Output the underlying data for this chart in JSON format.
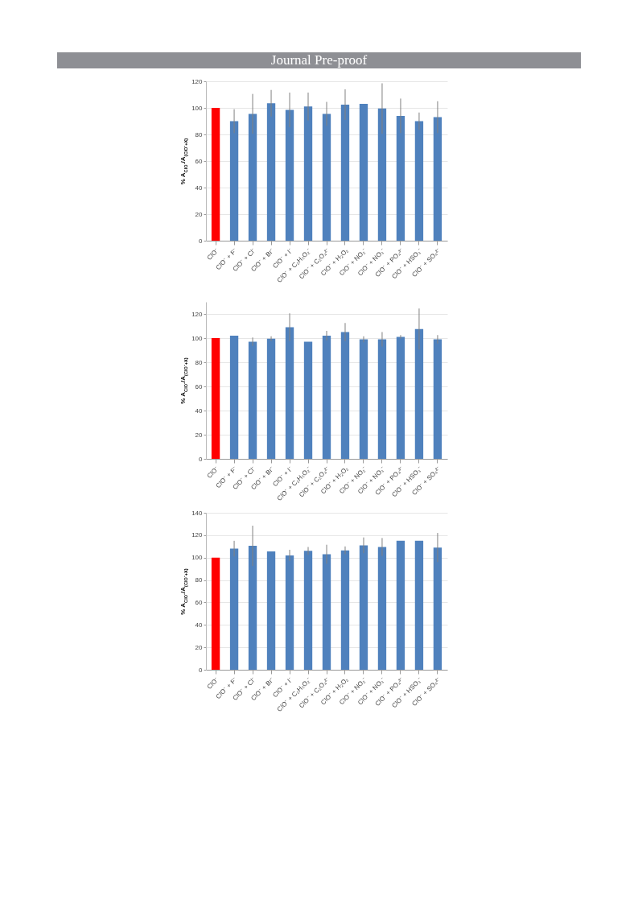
{
  "chart_data": [
    {
      "type": "bar",
      "annotations": [
        "Journal Pre-proof"
      ],
      "ylabel": "% A$_{ClO⁻}$/A$_{(ClO⁻+X)}$",
      "categories": [
        "ClO⁻",
        "ClO⁻ + F⁻",
        "ClO⁻ + Cl⁻",
        "ClO⁻ + Br⁻",
        "ClO⁻ + I⁻",
        "ClO⁻ + C₂H₃O₂⁻",
        "ClO⁻ + C₂O₄²⁻",
        "ClO⁻ + H₂O₂",
        "ClO⁻ + NO₂⁻",
        "ClO⁻ + NO₃⁻",
        "ClO⁻ + PO₄³⁻",
        "ClO⁻ + HSO₃⁻",
        "ClO⁻ + SO₄²⁻"
      ],
      "values": [
        100,
        90,
        95.5,
        103.5,
        98.5,
        101,
        95.5,
        102.5,
        103,
        99.5,
        94,
        90,
        93
      ],
      "errors": [
        null,
        9,
        15,
        10,
        13,
        10.5,
        9,
        11.5,
        null,
        19,
        13,
        6.5,
        12
      ],
      "colors": [
        "#ff0000",
        "#4f81bd",
        "#4f81bd",
        "#4f81bd",
        "#4f81bd",
        "#4f81bd",
        "#4f81bd",
        "#4f81bd",
        "#4f81bd",
        "#4f81bd",
        "#4f81bd",
        "#4f81bd",
        "#4f81bd"
      ],
      "ylim": [
        0,
        120
      ],
      "yticks": [
        0,
        20,
        40,
        60,
        80,
        100,
        120
      ],
      "grid": "y"
    },
    {
      "type": "bar",
      "ylabel": "% A$_{ClO⁻}$/A$_{(ClO⁻+X)}$",
      "categories": [
        "ClO⁻",
        "ClO⁻ + F⁻",
        "ClO⁻ + Cl⁻",
        "ClO⁻ + Br⁻",
        "ClO⁻ + I⁻",
        "ClO⁻ + C₂H₃O₂⁻",
        "ClO⁻ + C₂O₄²⁻",
        "ClO⁻ + H₂O₂",
        "ClO⁻ + NO₂⁻",
        "ClO⁻ + NO₃⁻",
        "ClO⁻ + PO₄³⁻",
        "ClO⁻ + HSO₃⁻",
        "ClO⁻ + SO₄²⁻"
      ],
      "values": [
        100,
        102,
        97,
        99.5,
        109,
        97,
        102,
        105,
        99,
        99,
        101,
        107.5,
        99
      ],
      "errors": [
        null,
        null,
        3.5,
        2,
        11.5,
        null,
        4,
        7.5,
        2.5,
        6,
        1.5,
        17,
        3.5
      ],
      "colors": [
        "#ff0000",
        "#4f81bd",
        "#4f81bd",
        "#4f81bd",
        "#4f81bd",
        "#4f81bd",
        "#4f81bd",
        "#4f81bd",
        "#4f81bd",
        "#4f81bd",
        "#4f81bd",
        "#4f81bd",
        "#4f81bd"
      ],
      "ylim": [
        0,
        130
      ],
      "yticks": [
        0,
        20,
        40,
        60,
        80,
        100,
        120
      ],
      "grid": "y"
    },
    {
      "type": "bar",
      "ylabel": "% A$_{ClO⁻}$/A$_{(ClO⁻+X)}$",
      "categories": [
        "ClO⁻",
        "ClO⁻ + F⁻",
        "ClO⁻ + Cl⁻",
        "ClO⁻ + Br⁻",
        "ClO⁻ + I⁻",
        "ClO⁻ + C₂H₃O₂⁻",
        "ClO⁻ + C₂O₄²⁻",
        "ClO⁻ + H₂O₂",
        "ClO⁻ + NO₂⁻",
        "ClO⁻ + NO₃⁻",
        "ClO⁻ + PO₄³⁻",
        "ClO⁻ + HSO₃⁻",
        "ClO⁻ + SO₄²⁻"
      ],
      "values": [
        100,
        108,
        110.5,
        105.5,
        102,
        106,
        103,
        106.5,
        111,
        109.5,
        115,
        115,
        109
      ],
      "errors": [
        null,
        7,
        18,
        null,
        5,
        3.5,
        8.5,
        3.5,
        7,
        8,
        null,
        null,
        13
      ],
      "colors": [
        "#ff0000",
        "#4f81bd",
        "#4f81bd",
        "#4f81bd",
        "#4f81bd",
        "#4f81bd",
        "#4f81bd",
        "#4f81bd",
        "#4f81bd",
        "#4f81bd",
        "#4f81bd",
        "#4f81bd",
        "#4f81bd"
      ],
      "ylim": [
        0,
        140
      ],
      "yticks": [
        0,
        20,
        40,
        60,
        80,
        100,
        120,
        140
      ],
      "grid": "y"
    }
  ]
}
